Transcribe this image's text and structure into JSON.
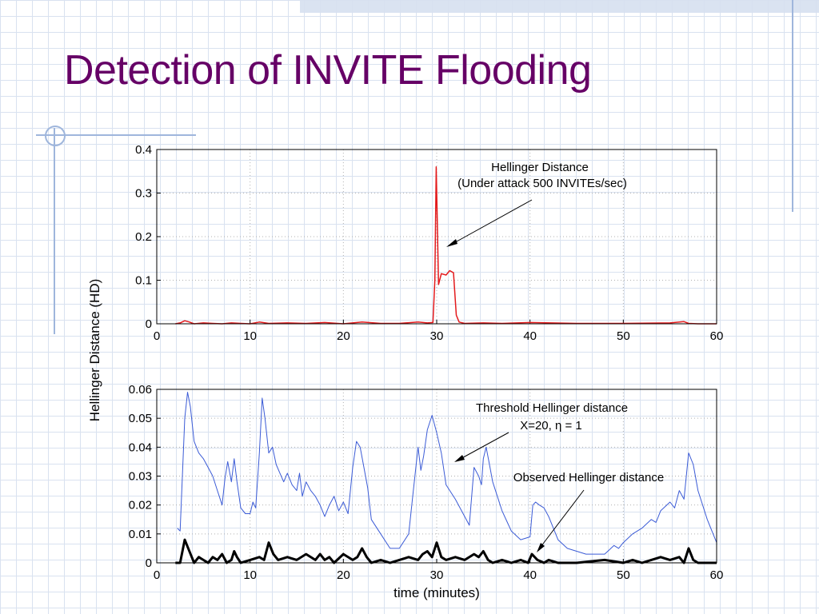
{
  "slide": {
    "title": "Detection of INVITE Flooding"
  },
  "colors": {
    "title": "#660066",
    "attack": "#e31a1c",
    "threshold": "#3b5bd6",
    "observed": "#000000"
  },
  "chart_data": [
    {
      "type": "line",
      "ylabel": "Hellinger Distance (HD)",
      "xlim": [
        0,
        60
      ],
      "ylim": [
        0,
        0.4
      ],
      "xticks": [
        "0",
        "10",
        "20",
        "30",
        "40",
        "50",
        "60"
      ],
      "yticks": [
        "0",
        "0.1",
        "0.2",
        "0.3",
        "0.4"
      ],
      "grid": true,
      "annotations": [
        "Hellinger Distance",
        "(Under attack 500 INVITEs/sec)"
      ],
      "series": [
        {
          "color": "#e31a1c",
          "x": [
            2,
            2.5,
            3,
            3.5,
            4,
            5,
            6,
            7,
            8,
            9,
            10,
            11,
            12,
            14,
            16,
            18,
            20,
            22,
            24,
            26,
            28,
            29,
            29.6,
            29.8,
            29.95,
            30.2,
            30.5,
            31,
            31.4,
            31.8,
            32.1,
            32.4,
            33,
            35,
            37,
            40,
            45,
            50,
            55,
            56.5,
            57,
            58,
            60
          ],
          "y": [
            0,
            0.002,
            0.007,
            0.004,
            0,
            0.002,
            0.001,
            0,
            0.002,
            0.001,
            0,
            0.004,
            0.001,
            0.002,
            0.001,
            0.003,
            0,
            0.004,
            0.001,
            0.001,
            0.004,
            0.002,
            0.003,
            0.1,
            0.36,
            0.09,
            0.115,
            0.112,
            0.122,
            0.117,
            0.02,
            0.004,
            0.001,
            0.002,
            0.001,
            0.003,
            0.001,
            0.001,
            0.002,
            0.005,
            0.001,
            0,
            0
          ]
        }
      ]
    },
    {
      "type": "line",
      "xlabel": "time (minutes)",
      "xlim": [
        0,
        60
      ],
      "ylim": [
        0,
        0.06
      ],
      "xticks": [
        "0",
        "10",
        "20",
        "30",
        "40",
        "50",
        "60"
      ],
      "yticks": [
        "0",
        "0.01",
        "0.02",
        "0.03",
        "0.04",
        "0.05",
        "0.06"
      ],
      "grid": true,
      "annotations": [
        "Threshold Hellinger distance",
        "X=20, η = 1",
        "Observed Hellinger distance"
      ],
      "series": [
        {
          "name": "Threshold Hellinger distance",
          "color": "#3b5bd6",
          "x": [
            2.2,
            2.5,
            3,
            3.3,
            3.6,
            4,
            4.5,
            5,
            5.5,
            6,
            6.5,
            7,
            7.3,
            7.6,
            8,
            8.3,
            8.6,
            9,
            9.5,
            10,
            10.3,
            10.6,
            11,
            11.3,
            11.6,
            12,
            12.4,
            12.8,
            13.2,
            13.6,
            14,
            14.5,
            15,
            15.3,
            15.6,
            16,
            16.5,
            17,
            17.5,
            18,
            18.5,
            19,
            19.5,
            20,
            20.5,
            21,
            21.4,
            21.8,
            22.2,
            22.6,
            23,
            24,
            25,
            26,
            27,
            27.5,
            28,
            28.3,
            28.6,
            29,
            29.5,
            30,
            30.5,
            31,
            32,
            33,
            33.5,
            34,
            34.5,
            34.8,
            35,
            35.3,
            35.6,
            36,
            37,
            38,
            39,
            40,
            40.3,
            40.6,
            41,
            41.5,
            42,
            43,
            44,
            45,
            46,
            47,
            48,
            49,
            49.5,
            50,
            51,
            52,
            53,
            53.5,
            54,
            55,
            55.5,
            56,
            56.5,
            57,
            57.5,
            58,
            59,
            60
          ],
          "y": [
            0.012,
            0.011,
            0.05,
            0.059,
            0.054,
            0.042,
            0.038,
            0.036,
            0.033,
            0.03,
            0.025,
            0.02,
            0.029,
            0.035,
            0.028,
            0.036,
            0.028,
            0.019,
            0.017,
            0.017,
            0.021,
            0.019,
            0.038,
            0.057,
            0.05,
            0.038,
            0.04,
            0.034,
            0.031,
            0.028,
            0.031,
            0.027,
            0.025,
            0.031,
            0.023,
            0.028,
            0.025,
            0.023,
            0.02,
            0.016,
            0.02,
            0.023,
            0.018,
            0.021,
            0.017,
            0.033,
            0.042,
            0.04,
            0.033,
            0.026,
            0.015,
            0.01,
            0.005,
            0.005,
            0.01,
            0.025,
            0.04,
            0.032,
            0.037,
            0.046,
            0.051,
            0.045,
            0.038,
            0.027,
            0.022,
            0.016,
            0.013,
            0.033,
            0.03,
            0.027,
            0.036,
            0.04,
            0.035,
            0.028,
            0.018,
            0.011,
            0.008,
            0.009,
            0.02,
            0.021,
            0.02,
            0.019,
            0.016,
            0.008,
            0.005,
            0.004,
            0.003,
            0.003,
            0.003,
            0.006,
            0.005,
            0.007,
            0.01,
            0.012,
            0.015,
            0.014,
            0.018,
            0.021,
            0.019,
            0.025,
            0.022,
            0.038,
            0.034,
            0.025,
            0.015,
            0.007
          ]
        },
        {
          "name": "Observed Hellinger distance",
          "color": "#000000",
          "x": [
            2,
            2.5,
            3,
            3.5,
            4,
            4.5,
            5,
            5.5,
            6,
            6.5,
            7,
            7.5,
            8,
            8.3,
            8.6,
            9,
            10,
            11,
            11.5,
            12,
            12.5,
            13,
            14,
            15,
            16,
            17,
            17.5,
            18,
            18.5,
            19,
            20,
            21,
            21.5,
            22,
            22.5,
            23,
            24,
            25,
            26,
            27,
            28,
            28.5,
            29,
            29.5,
            30,
            30.5,
            31,
            32,
            33,
            34,
            34.5,
            35,
            35.5,
            36,
            37,
            38,
            39,
            39.8,
            40.2,
            40.8,
            41.5,
            42,
            43,
            45,
            48,
            50,
            51,
            52,
            53,
            54,
            55,
            56,
            56.5,
            57,
            57.5,
            58,
            60
          ],
          "y": [
            0,
            0,
            0.008,
            0.004,
            0,
            0.002,
            0.001,
            0,
            0.002,
            0.001,
            0.003,
            0,
            0.001,
            0.004,
            0.002,
            0,
            0.001,
            0.002,
            0.001,
            0.007,
            0.003,
            0.001,
            0.002,
            0.001,
            0.003,
            0.001,
            0.003,
            0.001,
            0.002,
            0,
            0.003,
            0.001,
            0.002,
            0.005,
            0.002,
            0,
            0.001,
            0,
            0.001,
            0.002,
            0.001,
            0.003,
            0.004,
            0.002,
            0.007,
            0.002,
            0.001,
            0.002,
            0.001,
            0.003,
            0.002,
            0.004,
            0.001,
            0,
            0.001,
            0,
            0.001,
            0,
            0.003,
            0.001,
            0,
            0.001,
            0,
            0,
            0.001,
            0,
            0.001,
            0,
            0.001,
            0.002,
            0.001,
            0.002,
            0,
            0.005,
            0.001,
            0,
            0
          ]
        }
      ]
    }
  ]
}
